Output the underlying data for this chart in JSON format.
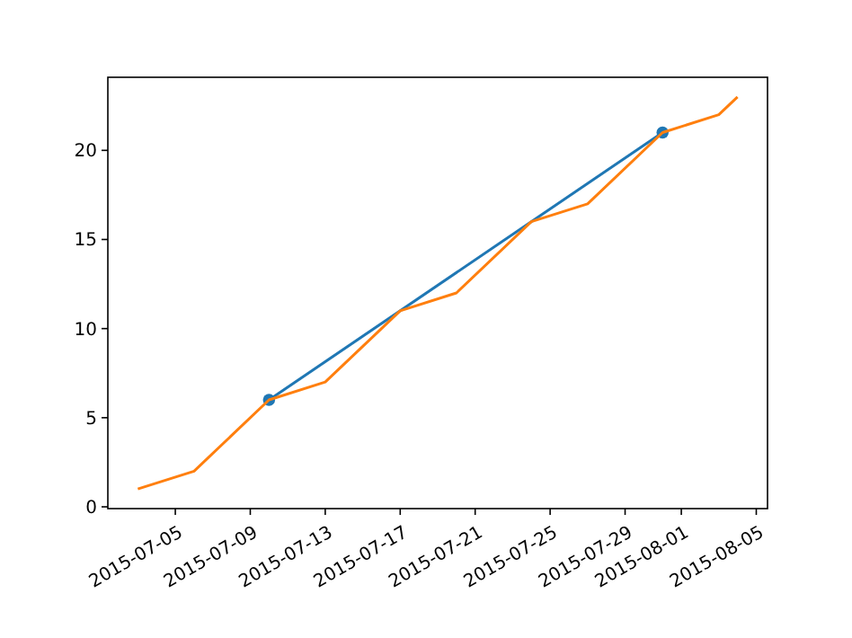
{
  "chart_data": {
    "type": "line",
    "xlim": [
      "2015-07-01T09:36",
      "2015-08-05T14:24"
    ],
    "xticks": [
      "2015-07-05",
      "2015-07-09",
      "2015-07-13",
      "2015-07-17",
      "2015-07-21",
      "2015-07-25",
      "2015-07-29",
      "2015-08-01",
      "2015-08-05"
    ],
    "ylim": [
      -0.1,
      24.1
    ],
    "yticks": [
      0,
      5,
      10,
      15,
      20
    ],
    "series": [
      {
        "color": "#1f77b4",
        "marker": "circle",
        "x": [
          "2015-07-10",
          "2015-07-31"
        ],
        "values": [
          6,
          21
        ]
      },
      {
        "color": "#ff7f0e",
        "marker": "none",
        "x": [
          "2015-07-03",
          "2015-07-06",
          "2015-07-10",
          "2015-07-13",
          "2015-07-17",
          "2015-07-20",
          "2015-07-24",
          "2015-07-27",
          "2015-07-31",
          "2015-08-03",
          "2015-08-04"
        ],
        "values": [
          1,
          2,
          6,
          7,
          11,
          12,
          16,
          17,
          21,
          22,
          23
        ]
      }
    ]
  }
}
